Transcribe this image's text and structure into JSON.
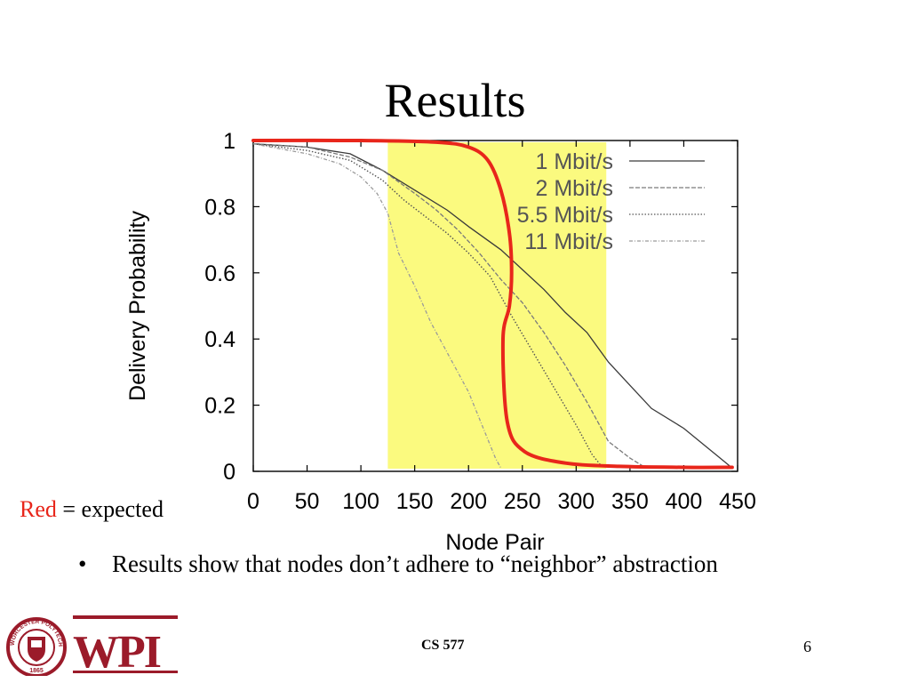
{
  "slide": {
    "title": "Results",
    "note_red": "Red",
    "note_rest": " = expected",
    "bullet": "Results show that nodes don’t adhere to “neighbor” abstraction",
    "footer_course": "CS 577",
    "page_number": "6",
    "logo_text": "WPI",
    "seal_text": "WORCESTER POLYTECHNIC INSTITUTE",
    "seal_year": "1865"
  },
  "colors": {
    "expected_curve": "#e8261b",
    "highlight_band": "#fbfa7f",
    "logo_maroon": "#9b1b2a"
  },
  "chart_data": {
    "type": "line",
    "xlabel": "Node Pair",
    "ylabel": "Delivery Probability",
    "xlim": [
      0,
      450
    ],
    "ylim": [
      0,
      1
    ],
    "xticks": [
      0,
      50,
      100,
      150,
      200,
      250,
      300,
      350,
      400,
      450
    ],
    "yticks": [
      0,
      0.2,
      0.4,
      0.6,
      0.8,
      1
    ],
    "ytick_labels": [
      "0",
      "0.2",
      "0.4",
      "0.6",
      "0.8",
      "1"
    ],
    "legend_position": "top-right",
    "highlight_band": {
      "x_start": 125,
      "x_end": 328
    },
    "series": [
      {
        "name": "1 Mbit/s",
        "style": "solid",
        "x": [
          0,
          50,
          90,
          120,
          150,
          180,
          200,
          230,
          250,
          270,
          290,
          310,
          330,
          350,
          370,
          400,
          430,
          445
        ],
        "y": [
          0.99,
          0.98,
          0.96,
          0.91,
          0.85,
          0.79,
          0.74,
          0.67,
          0.61,
          0.55,
          0.48,
          0.42,
          0.33,
          0.26,
          0.19,
          0.13,
          0.05,
          0.01
        ]
      },
      {
        "name": "2 Mbit/s",
        "style": "dashed",
        "x": [
          0,
          50,
          90,
          120,
          150,
          170,
          190,
          210,
          230,
          250,
          270,
          290,
          310,
          330,
          350,
          365
        ],
        "y": [
          0.99,
          0.98,
          0.95,
          0.91,
          0.84,
          0.79,
          0.73,
          0.66,
          0.58,
          0.51,
          0.42,
          0.32,
          0.21,
          0.09,
          0.04,
          0.01
        ]
      },
      {
        "name": "5.5 Mbit/s",
        "style": "dotted",
        "x": [
          0,
          50,
          90,
          120,
          140,
          160,
          180,
          200,
          220,
          240,
          260,
          280,
          300,
          315,
          325
        ],
        "y": [
          0.99,
          0.97,
          0.94,
          0.88,
          0.82,
          0.77,
          0.72,
          0.66,
          0.59,
          0.47,
          0.36,
          0.25,
          0.14,
          0.05,
          0.01
        ]
      },
      {
        "name": "11 Mbit/s",
        "style": "dash-dot",
        "x": [
          0,
          50,
          80,
          100,
          115,
          125,
          135,
          150,
          165,
          180,
          200,
          215,
          225,
          230
        ],
        "y": [
          0.99,
          0.96,
          0.93,
          0.89,
          0.84,
          0.78,
          0.66,
          0.56,
          0.45,
          0.36,
          0.24,
          0.12,
          0.04,
          0.01
        ]
      }
    ],
    "expected_curve": {
      "x": [
        0,
        100,
        170,
        200,
        218,
        230,
        238,
        240,
        238,
        232,
        236,
        252,
        290,
        340,
        400,
        445
      ],
      "y": [
        1.0,
        1.0,
        0.995,
        0.98,
        0.94,
        0.85,
        0.72,
        0.6,
        0.5,
        0.4,
        0.15,
        0.06,
        0.025,
        0.015,
        0.012,
        0.012
      ]
    }
  }
}
